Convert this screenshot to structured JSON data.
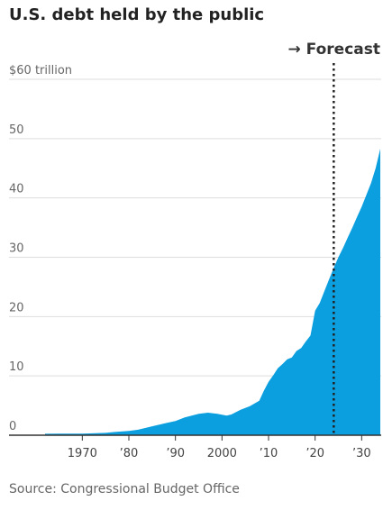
{
  "chart_data": {
    "type": "area",
    "title": "U.S. debt held by the public",
    "source": "Source: Congressional Budget Office",
    "forecast_label": "→ Forecast",
    "forecast_start": 2024,
    "unit_top_label": "$60 trillion",
    "ylim": [
      0,
      60
    ],
    "yticks": [
      0,
      10,
      20,
      30,
      40,
      50,
      60
    ],
    "xlim": [
      1962,
      2034
    ],
    "xticks": [
      {
        "value": 1970,
        "label": "1970"
      },
      {
        "value": 1980,
        "label": "’80"
      },
      {
        "value": 1990,
        "label": "’90"
      },
      {
        "value": 2000,
        "label": "2000"
      },
      {
        "value": 2010,
        "label": "’10"
      },
      {
        "value": 2020,
        "label": "’20"
      },
      {
        "value": 2030,
        "label": "’30"
      }
    ],
    "grid": true,
    "colors": {
      "area": "#0b9fdf",
      "grid": "#dddddd",
      "baseline": "#333333",
      "forecast_line": "#222222"
    },
    "series": [
      {
        "x": [
          1962,
          1965,
          1970,
          1975,
          1977,
          1980,
          1982,
          1985,
          1988,
          1990,
          1992,
          1995,
          1997,
          1999,
          2001,
          2002,
          2004,
          2006,
          2008,
          2009,
          2010,
          2011,
          2012,
          2013,
          2014,
          2015,
          2016,
          2017,
          2018,
          2019,
          2020,
          2021,
          2022,
          2023,
          2024,
          2025,
          2026,
          2027,
          2028,
          2029,
          2030,
          2031,
          2032,
          2033,
          2034
        ],
        "values": [
          0.25,
          0.26,
          0.28,
          0.39,
          0.55,
          0.71,
          0.92,
          1.5,
          2.05,
          2.4,
          3.0,
          3.6,
          3.8,
          3.6,
          3.3,
          3.5,
          4.3,
          4.9,
          5.8,
          7.5,
          9.0,
          10.1,
          11.3,
          12.0,
          12.8,
          13.1,
          14.2,
          14.7,
          15.8,
          16.8,
          21.0,
          22.3,
          24.3,
          26.3,
          28.2,
          30.0,
          31.6,
          33.3,
          35.0,
          36.8,
          38.5,
          40.5,
          42.5,
          45.0,
          48.3
        ]
      }
    ]
  }
}
